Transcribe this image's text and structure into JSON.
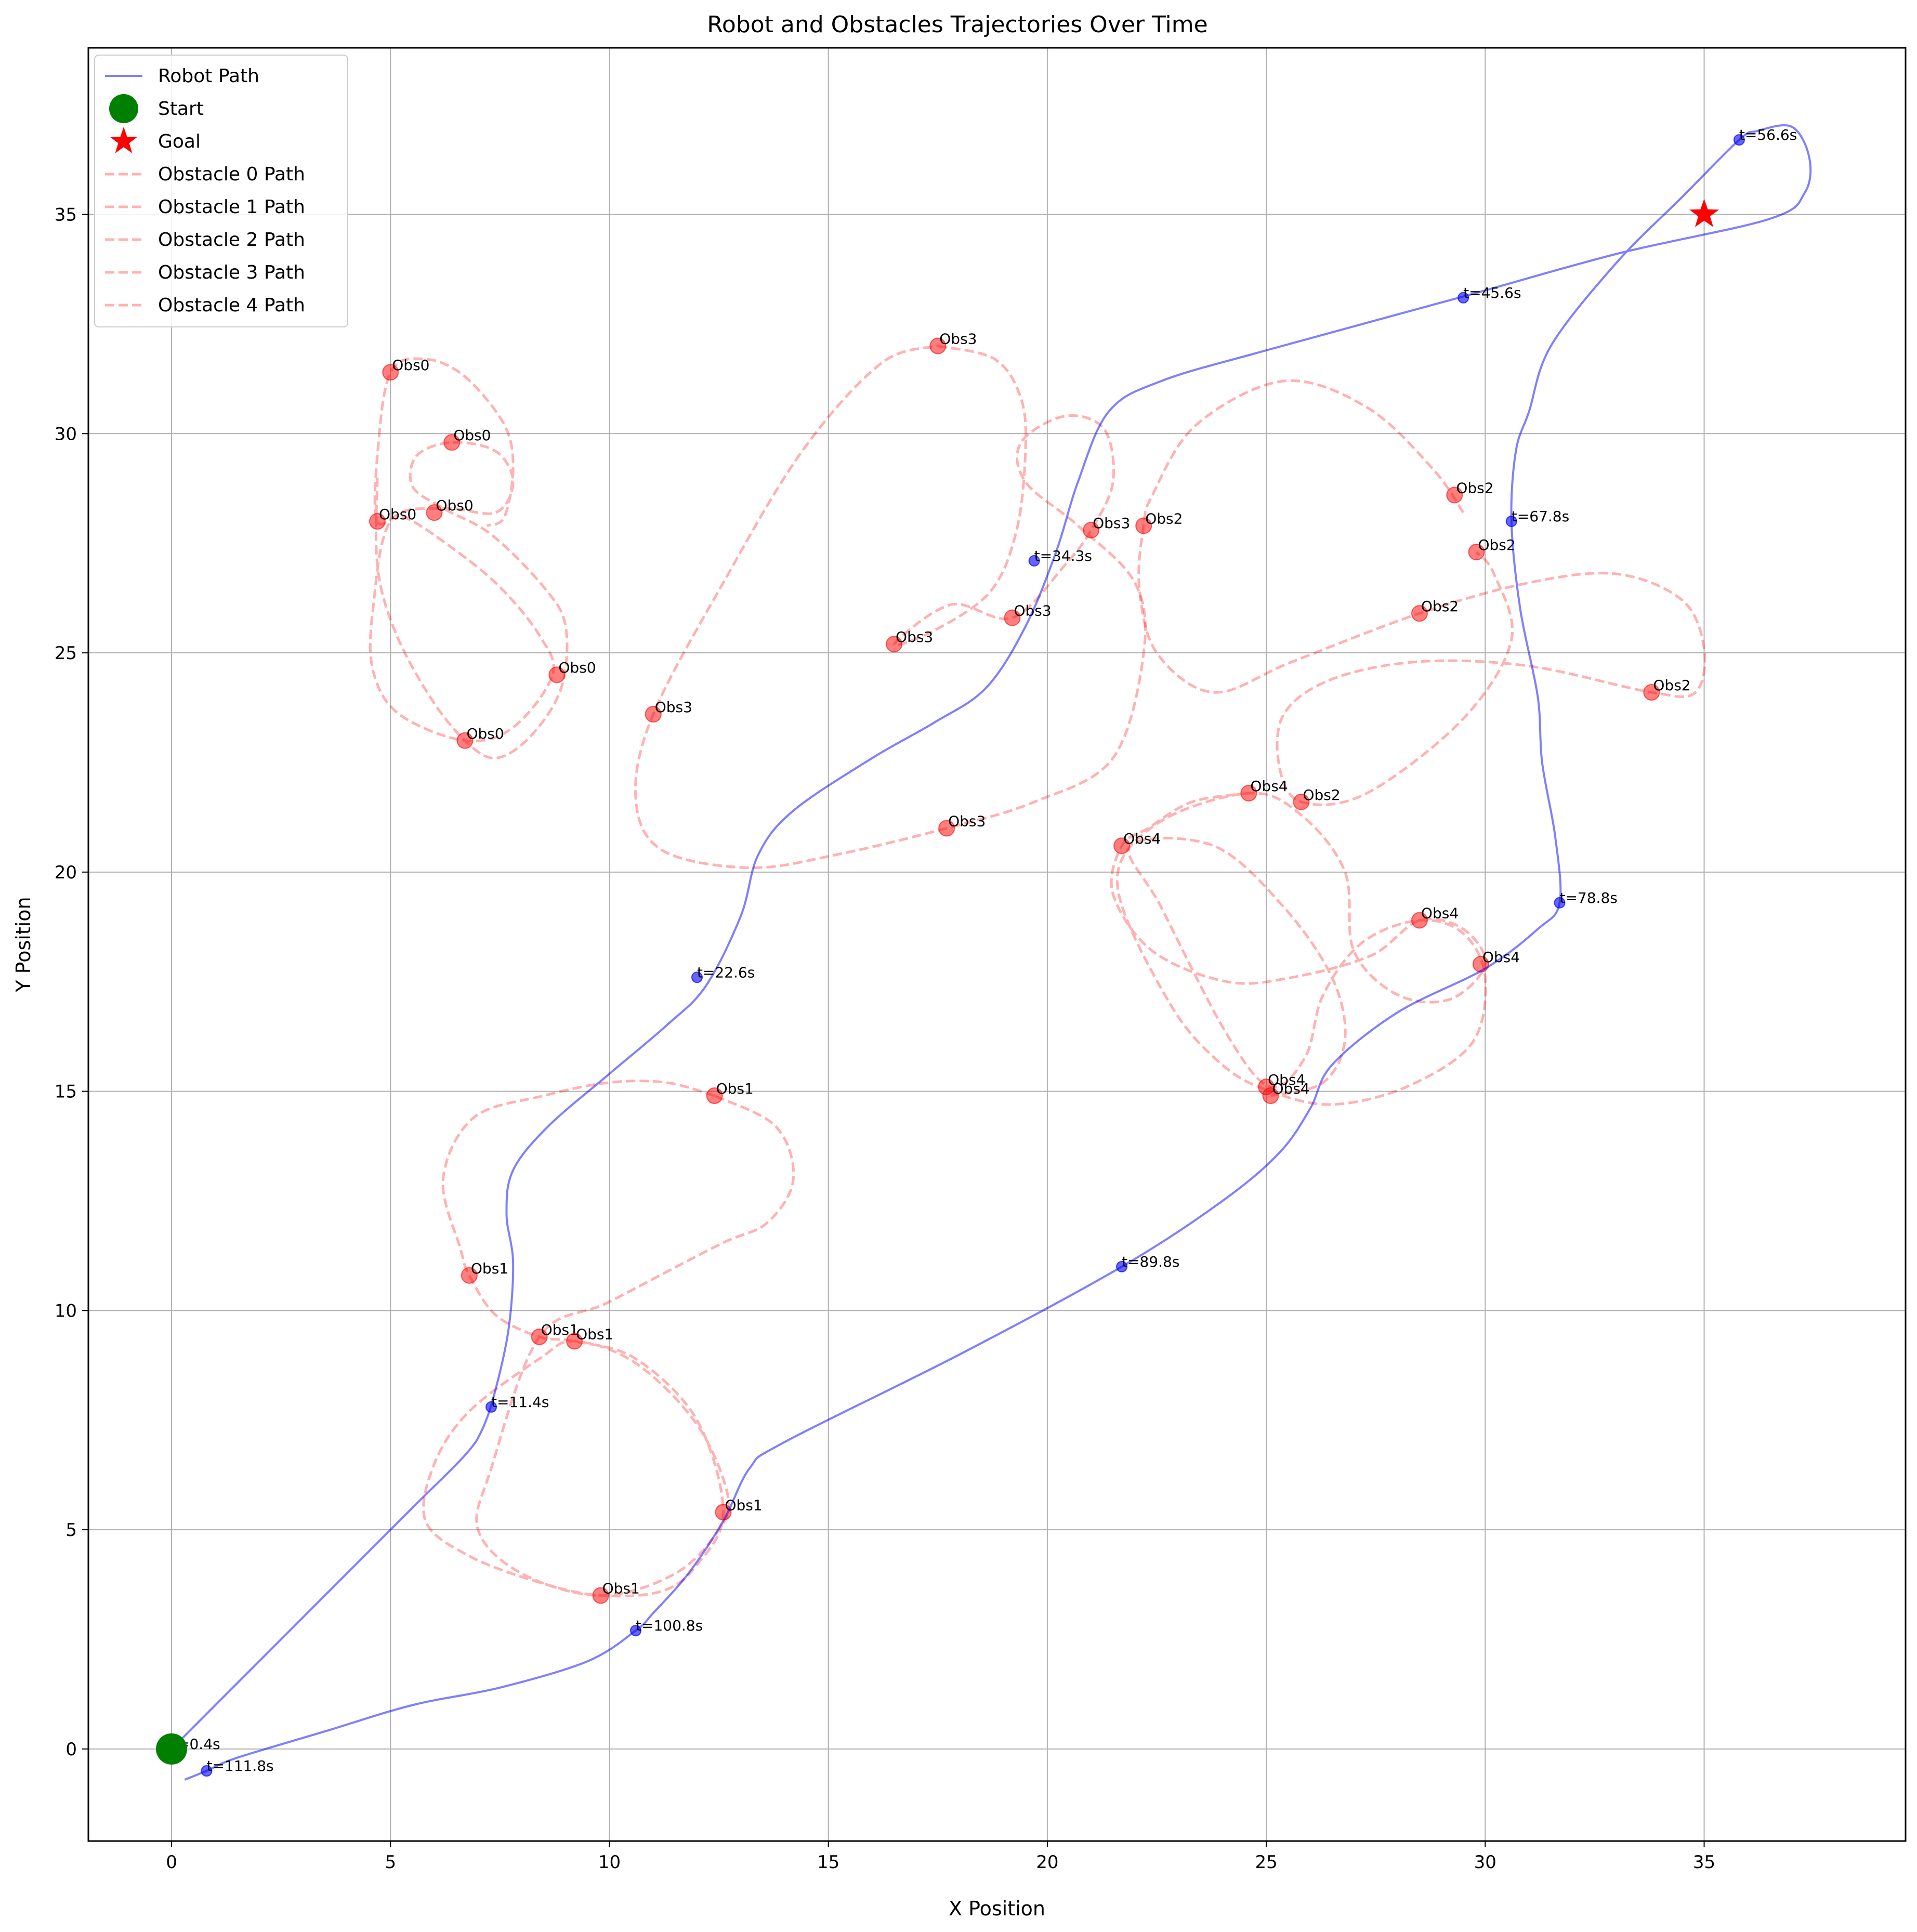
{
  "chart_data": {
    "type": "scatter",
    "title": "Robot and Obstacles Trajectories Over Time",
    "xlabel": "X Position",
    "ylabel": "Y Position",
    "xlim": [
      -1.9,
      39.6
    ],
    "ylim": [
      -2.1,
      38.8
    ],
    "xticks": [
      0,
      5,
      10,
      15,
      20,
      25,
      30,
      35
    ],
    "yticks": [
      0,
      5,
      10,
      15,
      20,
      25,
      30,
      35
    ],
    "grid": true,
    "legend_position": "top-left",
    "colors": {
      "robot": "#0000ff",
      "start": "#008000",
      "goal": "#ff0000",
      "obstacle": "#ff0000",
      "grid": "#b0b0b0"
    },
    "legend": [
      {
        "label": "Robot Path",
        "kind": "line"
      },
      {
        "label": "Start",
        "kind": "circle"
      },
      {
        "label": "Goal",
        "kind": "star"
      },
      {
        "label": "Obstacle 0 Path",
        "kind": "dash"
      },
      {
        "label": "Obstacle 1 Path",
        "kind": "dash"
      },
      {
        "label": "Obstacle 2 Path",
        "kind": "dash"
      },
      {
        "label": "Obstacle 3 Path",
        "kind": "dash"
      },
      {
        "label": "Obstacle 4 Path",
        "kind": "dash"
      }
    ],
    "robot_path": {
      "name": "Robot Path",
      "points": [
        [
          0,
          0
        ],
        [
          1.5,
          1.5
        ],
        [
          3.5,
          3.5
        ],
        [
          5.5,
          5.5
        ],
        [
          6.7,
          6.7
        ],
        [
          7.1,
          7.3
        ],
        [
          7.4,
          8.2
        ],
        [
          7.7,
          9.6
        ],
        [
          7.8,
          11.1
        ],
        [
          7.65,
          12.2
        ],
        [
          7.8,
          13.2
        ],
        [
          8.6,
          14.2
        ],
        [
          10.0,
          15.4
        ],
        [
          11.3,
          16.5
        ],
        [
          12.2,
          17.4
        ],
        [
          13.0,
          19.0
        ],
        [
          13.4,
          20.4
        ],
        [
          14.2,
          21.4
        ],
        [
          16.0,
          22.6
        ],
        [
          17.4,
          23.4
        ],
        [
          18.6,
          24.2
        ],
        [
          19.5,
          25.6
        ],
        [
          20.2,
          27.3
        ],
        [
          20.7,
          28.9
        ],
        [
          21.4,
          30.5
        ],
        [
          22.6,
          31.2
        ],
        [
          25.0,
          31.9
        ],
        [
          29.4,
          33.1
        ],
        [
          33.0,
          34.1
        ],
        [
          36.5,
          34.9
        ],
        [
          37.3,
          35.5
        ],
        [
          37.4,
          36.3
        ],
        [
          37.0,
          37.0
        ],
        [
          36.2,
          36.9
        ],
        [
          35.8,
          36.7
        ],
        [
          34.5,
          35.4
        ],
        [
          33.0,
          33.9
        ],
        [
          31.5,
          32.0
        ],
        [
          31.0,
          30.5
        ],
        [
          30.7,
          29.6
        ],
        [
          30.6,
          28.0
        ],
        [
          30.8,
          26.0
        ],
        [
          31.2,
          24.0
        ],
        [
          31.3,
          22.5
        ],
        [
          31.6,
          20.8
        ],
        [
          31.7,
          19.3
        ],
        [
          31.2,
          18.7
        ],
        [
          30.0,
          17.8
        ],
        [
          28.0,
          16.8
        ],
        [
          26.5,
          15.6
        ],
        [
          26.0,
          14.6
        ],
        [
          25.3,
          13.6
        ],
        [
          24.0,
          12.5
        ],
        [
          21.7,
          11.0
        ],
        [
          18.0,
          9.0
        ],
        [
          14.0,
          7.0
        ],
        [
          13.2,
          6.4
        ],
        [
          12.6,
          5.2
        ],
        [
          11.8,
          4.0
        ],
        [
          11.0,
          3.1
        ],
        [
          10.6,
          2.7
        ],
        [
          9.5,
          2.0
        ],
        [
          7.5,
          1.4
        ],
        [
          5.5,
          1.0
        ],
        [
          3.5,
          0.4
        ],
        [
          1.5,
          -0.2
        ],
        [
          0.8,
          -0.5
        ],
        [
          0.3,
          -0.7
        ]
      ],
      "time_markers": [
        {
          "x": 0,
          "y": 0,
          "label": "t=0.4s"
        },
        {
          "x": 7.3,
          "y": 7.8,
          "label": "t=11.4s"
        },
        {
          "x": 12.0,
          "y": 17.6,
          "label": "t=22.6s"
        },
        {
          "x": 19.7,
          "y": 27.1,
          "label": "t=34.3s"
        },
        {
          "x": 29.5,
          "y": 33.1,
          "label": "t=45.6s"
        },
        {
          "x": 35.8,
          "y": 36.7,
          "label": "t=56.6s"
        },
        {
          "x": 30.6,
          "y": 28.0,
          "label": "t=67.8s"
        },
        {
          "x": 31.7,
          "y": 19.3,
          "label": "t=78.8s"
        },
        {
          "x": 21.7,
          "y": 11.0,
          "label": "t=89.8s"
        },
        {
          "x": 10.6,
          "y": 2.7,
          "label": "t=100.8s"
        },
        {
          "x": 0.8,
          "y": -0.5,
          "label": "t=111.8s"
        }
      ]
    },
    "start": {
      "x": 0,
      "y": 0,
      "label": "Start"
    },
    "goal": {
      "x": 35,
      "y": 35,
      "label": "Goal"
    },
    "obstacles": [
      {
        "name": "Obstacle 0 Path",
        "path": [
          [
            4.7,
            29.0
          ],
          [
            4.7,
            27.0
          ],
          [
            5.1,
            25.5
          ],
          [
            5.9,
            24.0
          ],
          [
            6.7,
            23.0
          ],
          [
            7.4,
            22.6
          ],
          [
            8.2,
            23.1
          ],
          [
            8.9,
            24.2
          ],
          [
            9.0,
            25.6
          ],
          [
            8.5,
            26.5
          ],
          [
            7.3,
            27.7
          ],
          [
            6.2,
            28.3
          ],
          [
            5.5,
            28.8
          ],
          [
            5.6,
            29.5
          ],
          [
            6.4,
            29.8
          ],
          [
            7.4,
            29.6
          ],
          [
            7.8,
            28.9
          ],
          [
            7.4,
            28.2
          ],
          [
            6.2,
            28.3
          ],
          [
            5.0,
            28.0
          ],
          [
            4.6,
            26.0
          ],
          [
            4.6,
            24.6
          ],
          [
            5.2,
            23.6
          ],
          [
            6.7,
            23.0
          ],
          [
            7.8,
            23.3
          ],
          [
            8.7,
            24.5
          ],
          [
            8.4,
            25.4
          ],
          [
            7.5,
            26.5
          ],
          [
            6.4,
            27.4
          ],
          [
            5.3,
            28.1
          ],
          [
            4.7,
            28.0
          ],
          [
            4.7,
            29.5
          ],
          [
            5.0,
            31.4
          ],
          [
            5.8,
            31.7
          ],
          [
            6.7,
            31.3
          ],
          [
            7.6,
            30.2
          ],
          [
            7.8,
            29.2
          ],
          [
            7.6,
            28.1
          ],
          [
            7.2,
            27.9
          ]
        ],
        "markers": [
          [
            5.0,
            31.4
          ],
          [
            6.4,
            29.8
          ],
          [
            4.7,
            28.0
          ],
          [
            6.0,
            28.2
          ],
          [
            8.8,
            24.5
          ],
          [
            6.7,
            23.0
          ]
        ],
        "label": "Obs0"
      },
      {
        "name": "Obstacle 1 Path",
        "path": [
          [
            12.4,
            14.9
          ],
          [
            11.3,
            15.2
          ],
          [
            10.0,
            15.2
          ],
          [
            8.5,
            14.9
          ],
          [
            6.9,
            14.4
          ],
          [
            6.2,
            13.0
          ],
          [
            6.6,
            11.4
          ],
          [
            6.8,
            10.8
          ],
          [
            7.4,
            9.9
          ],
          [
            8.4,
            9.4
          ],
          [
            9.2,
            9.3
          ],
          [
            10.6,
            8.9
          ],
          [
            12.0,
            7.5
          ],
          [
            12.6,
            5.4
          ],
          [
            12.0,
            4.2
          ],
          [
            11.2,
            3.6
          ],
          [
            9.8,
            3.5
          ],
          [
            8.4,
            3.8
          ],
          [
            6.8,
            4.4
          ],
          [
            5.8,
            5.2
          ],
          [
            6.0,
            6.5
          ],
          [
            6.8,
            7.7
          ],
          [
            8.4,
            8.9
          ],
          [
            9.2,
            9.3
          ],
          [
            10.6,
            8.8
          ],
          [
            12.0,
            7.4
          ],
          [
            12.7,
            5.8
          ],
          [
            12.5,
            5.0
          ],
          [
            11.5,
            4.0
          ],
          [
            9.8,
            3.5
          ],
          [
            8.0,
            4.0
          ],
          [
            7.0,
            5.0
          ],
          [
            7.3,
            6.4
          ],
          [
            8.4,
            9.4
          ],
          [
            10.0,
            10.2
          ],
          [
            12.5,
            11.5
          ],
          [
            13.6,
            12.0
          ],
          [
            14.2,
            13.0
          ],
          [
            13.8,
            14.2
          ],
          [
            12.4,
            14.9
          ]
        ],
        "markers": [
          [
            12.4,
            14.9
          ],
          [
            6.8,
            10.8
          ],
          [
            8.4,
            9.4
          ],
          [
            9.2,
            9.3
          ],
          [
            12.6,
            5.4
          ],
          [
            9.8,
            3.5
          ]
        ],
        "label": "Obs1"
      },
      {
        "name": "Obstacle 2 Path",
        "path": [
          [
            29.5,
            28.2
          ],
          [
            28.8,
            29.2
          ],
          [
            27.3,
            30.6
          ],
          [
            25.4,
            31.2
          ],
          [
            23.4,
            30.2
          ],
          [
            22.4,
            28.6
          ],
          [
            22.2,
            27.9
          ],
          [
            22.1,
            26.5
          ],
          [
            22.5,
            25.0
          ],
          [
            23.8,
            24.1
          ],
          [
            25.6,
            24.8
          ],
          [
            28.5,
            25.9
          ],
          [
            31.0,
            26.6
          ],
          [
            33.0,
            26.8
          ],
          [
            34.5,
            26.2
          ],
          [
            35.0,
            25.1
          ],
          [
            34.8,
            24.1
          ],
          [
            33.8,
            24.1
          ],
          [
            31.0,
            24.7
          ],
          [
            28.5,
            24.8
          ],
          [
            26.5,
            24.4
          ],
          [
            25.4,
            23.6
          ],
          [
            25.3,
            22.4
          ],
          [
            25.8,
            21.6
          ],
          [
            27.3,
            21.8
          ],
          [
            29.5,
            23.5
          ],
          [
            30.6,
            25.3
          ],
          [
            30.2,
            26.8
          ],
          [
            29.8,
            27.3
          ]
        ],
        "markers": [
          [
            29.3,
            28.6
          ],
          [
            22.2,
            27.9
          ],
          [
            29.8,
            27.3
          ],
          [
            28.5,
            25.9
          ],
          [
            33.8,
            24.1
          ],
          [
            25.8,
            21.6
          ]
        ],
        "label": "Obs2"
      },
      {
        "name": "Obstacle 3 Path",
        "path": [
          [
            17.5,
            32.0
          ],
          [
            18.8,
            31.7
          ],
          [
            19.4,
            30.8
          ],
          [
            19.5,
            29.6
          ],
          [
            19.3,
            27.8
          ],
          [
            18.7,
            26.4
          ],
          [
            17.4,
            25.5
          ],
          [
            16.5,
            25.2
          ],
          [
            17.8,
            26.1
          ],
          [
            19.2,
            25.8
          ],
          [
            20.4,
            27.0
          ],
          [
            21.0,
            27.8
          ],
          [
            21.5,
            28.9
          ],
          [
            21.3,
            30.1
          ],
          [
            20.4,
            30.4
          ],
          [
            19.4,
            29.8
          ],
          [
            19.5,
            28.9
          ],
          [
            20.7,
            27.9
          ],
          [
            22.0,
            26.6
          ],
          [
            22.2,
            25.0
          ],
          [
            21.5,
            22.6
          ],
          [
            19.7,
            21.6
          ],
          [
            17.7,
            21.0
          ],
          [
            15.2,
            20.4
          ],
          [
            13.2,
            20.1
          ],
          [
            11.2,
            20.5
          ],
          [
            10.6,
            21.7
          ],
          [
            11.0,
            23.6
          ],
          [
            12.6,
            26.6
          ],
          [
            14.4,
            29.6
          ],
          [
            16.2,
            31.6
          ],
          [
            17.5,
            32.0
          ]
        ],
        "markers": [
          [
            17.5,
            32.0
          ],
          [
            21.0,
            27.8
          ],
          [
            19.2,
            25.8
          ],
          [
            16.5,
            25.2
          ],
          [
            11.0,
            23.6
          ],
          [
            17.7,
            21.0
          ]
        ],
        "label": "Obs3"
      },
      {
        "name": "Obstacle 4 Path",
        "path": [
          [
            24.6,
            21.8
          ],
          [
            23.3,
            21.6
          ],
          [
            22.3,
            21.0
          ],
          [
            21.7,
            20.6
          ],
          [
            21.5,
            19.5
          ],
          [
            22.4,
            18.2
          ],
          [
            24.1,
            17.5
          ],
          [
            25.6,
            17.6
          ],
          [
            27.4,
            18.1
          ],
          [
            28.5,
            18.9
          ],
          [
            29.5,
            18.7
          ],
          [
            30.0,
            17.9
          ],
          [
            29.2,
            17.1
          ],
          [
            28.0,
            17.2
          ],
          [
            27.0,
            18.2
          ],
          [
            26.8,
            20.0
          ],
          [
            25.8,
            21.3
          ],
          [
            24.6,
            21.8
          ],
          [
            22.5,
            21.1
          ],
          [
            21.6,
            19.7
          ],
          [
            22.8,
            17.0
          ],
          [
            24.0,
            15.6
          ],
          [
            25.1,
            15.0
          ],
          [
            26.5,
            14.7
          ],
          [
            28.2,
            15.1
          ],
          [
            29.7,
            16.1
          ],
          [
            30.0,
            17.6
          ],
          [
            29.5,
            18.6
          ],
          [
            28.5,
            18.9
          ],
          [
            27.2,
            18.4
          ],
          [
            26.3,
            17.2
          ],
          [
            25.9,
            15.8
          ],
          [
            25.1,
            15.1
          ],
          [
            24.1,
            16.3
          ],
          [
            22.6,
            19.2
          ],
          [
            21.9,
            20.6
          ],
          [
            23.8,
            20.6
          ],
          [
            25.4,
            19.2
          ],
          [
            26.5,
            17.6
          ],
          [
            26.8,
            16.2
          ],
          [
            26.3,
            15.2
          ],
          [
            25.1,
            14.9
          ]
        ],
        "markers": [
          [
            24.6,
            21.8
          ],
          [
            21.7,
            20.6
          ],
          [
            28.5,
            18.9
          ],
          [
            29.9,
            17.9
          ],
          [
            25.0,
            15.1
          ],
          [
            25.1,
            14.9
          ]
        ],
        "label": "Obs4"
      }
    ]
  }
}
